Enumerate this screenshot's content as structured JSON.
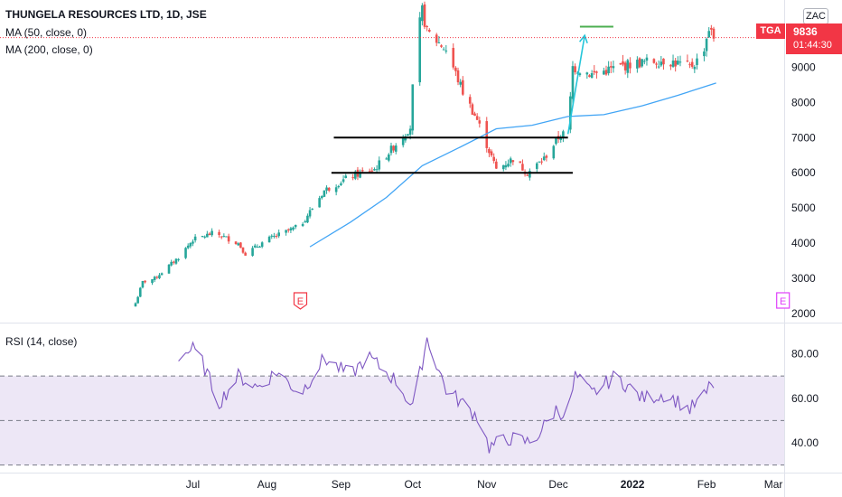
{
  "header": {
    "symbol_title": "THUNGELA RESOURCES LTD, 1D, JSE",
    "ma50_label": "MA (50, close, 0)",
    "ma200_label": "MA (200, close, 0)",
    "rsi_label": "RSI (14, close)"
  },
  "price_axis": {
    "ticks": [
      "9000",
      "8000",
      "7000",
      "6000",
      "5000",
      "4000",
      "3000",
      "2000"
    ],
    "currency_badge": "ZAC",
    "ticker_badge": "TGA",
    "last_price": "9836",
    "countdown": "01:44:30"
  },
  "rsi_axis": {
    "ticks": [
      "80.00",
      "60.00",
      "40.00"
    ]
  },
  "time_axis": {
    "labels": [
      "Jul",
      "Aug",
      "Sep",
      "Oct",
      "Nov",
      "Dec",
      "2022",
      "Feb",
      "Mar"
    ]
  },
  "markers": {
    "earnings_label": "E"
  },
  "colors": {
    "up": "#26a69a",
    "down": "#ef5350",
    "ma": "#2962ff",
    "ma_line": "#42a5f5",
    "rsi": "#7e57c2",
    "rsi_band": "#ede7f6",
    "arrow": "#26c6da",
    "target_line": "#4caf50",
    "price_badge": "#f23645",
    "earnings_marker": "#f23645",
    "earnings_marker_future": "#e040fb"
  },
  "chart_data": {
    "type": "candlestick",
    "title": "THUNGELA RESOURCES LTD, 1D, JSE",
    "price_range": [
      1800,
      10700
    ],
    "rsi_range": [
      27,
      92
    ],
    "rsi_levels": [
      70,
      50,
      30
    ],
    "last_price": 9836,
    "price_anchors": [
      [
        "2021-06-07",
        2300
      ],
      [
        "2021-06-10",
        2900
      ],
      [
        "2021-06-15",
        3000
      ],
      [
        "2021-06-25",
        3600
      ],
      [
        "2021-07-01",
        4100
      ],
      [
        "2021-07-10",
        4300
      ],
      [
        "2021-07-20",
        4000
      ],
      [
        "2021-07-23",
        3700
      ],
      [
        "2021-08-01",
        4100
      ],
      [
        "2021-08-15",
        4500
      ],
      [
        "2021-08-25",
        5500
      ],
      [
        "2021-09-05",
        5900
      ],
      [
        "2021-09-15",
        6100
      ],
      [
        "2021-09-25",
        6900
      ],
      [
        "2021-09-30",
        7300
      ],
      [
        "2021-10-02",
        9500
      ],
      [
        "2021-10-05",
        10600
      ],
      [
        "2021-10-07",
        10000
      ],
      [
        "2021-10-15",
        9500
      ],
      [
        "2021-10-22",
        8300
      ],
      [
        "2021-10-28",
        7500
      ],
      [
        "2021-11-01",
        6800
      ],
      [
        "2021-11-05",
        6100
      ],
      [
        "2021-11-12",
        6400
      ],
      [
        "2021-11-18",
        6000
      ],
      [
        "2021-11-25",
        6400
      ],
      [
        "2021-12-01",
        7000
      ],
      [
        "2021-12-05",
        7200
      ],
      [
        "2021-12-07",
        9000
      ],
      [
        "2021-12-15",
        8800
      ],
      [
        "2022-01-01",
        9100
      ],
      [
        "2022-01-15",
        9200
      ],
      [
        "2022-01-25",
        9000
      ],
      [
        "2022-01-30",
        9300
      ],
      [
        "2022-02-02",
        10100
      ],
      [
        "2022-02-04",
        9836
      ]
    ],
    "rsi_anchors": [
      [
        "2021-06-25",
        79
      ],
      [
        "2021-07-01",
        82
      ],
      [
        "2021-07-05",
        76
      ],
      [
        "2021-07-12",
        58
      ],
      [
        "2021-07-20",
        70
      ],
      [
        "2021-07-28",
        65
      ],
      [
        "2021-08-05",
        72
      ],
      [
        "2021-08-15",
        62
      ],
      [
        "2021-08-25",
        78
      ],
      [
        "2021-09-05",
        70
      ],
      [
        "2021-09-12",
        79
      ],
      [
        "2021-09-25",
        67
      ],
      [
        "2021-10-01",
        55
      ],
      [
        "2021-10-07",
        87
      ],
      [
        "2021-10-15",
        64
      ],
      [
        "2021-10-28",
        52
      ],
      [
        "2021-11-02",
        38
      ],
      [
        "2021-11-10",
        42
      ],
      [
        "2021-11-20",
        40
      ],
      [
        "2021-11-30",
        55
      ],
      [
        "2021-12-05",
        52
      ],
      [
        "2021-12-08",
        70
      ],
      [
        "2021-12-15",
        62
      ],
      [
        "2021-12-25",
        70
      ],
      [
        "2022-01-05",
        60
      ],
      [
        "2022-01-15",
        62
      ],
      [
        "2022-01-25",
        55
      ],
      [
        "2022-02-01",
        62
      ],
      [
        "2022-02-03",
        68
      ],
      [
        "2022-02-04",
        64
      ]
    ],
    "ma50": [
      [
        "2021-08-19",
        3900
      ],
      [
        "2021-09-05",
        4600
      ],
      [
        "2021-09-20",
        5300
      ],
      [
        "2021-10-05",
        6200
      ],
      [
        "2021-10-20",
        6700
      ],
      [
        "2021-11-05",
        7250
      ],
      [
        "2021-11-20",
        7350
      ],
      [
        "2021-12-05",
        7600
      ],
      [
        "2021-12-20",
        7650
      ],
      [
        "2022-01-05",
        7900
      ],
      [
        "2022-01-20",
        8200
      ],
      [
        "2022-02-05",
        8550
      ]
    ],
    "horizontal_levels": [
      {
        "from": "2021-08-29",
        "to": "2021-12-05",
        "value": 7000
      },
      {
        "from": "2021-08-28",
        "to": "2021-12-07",
        "value": 6000
      }
    ],
    "projection": {
      "from": [
        "2021-12-05",
        7100
      ],
      "to": [
        "2021-12-12",
        9900
      ],
      "target_from": "2021-12-10",
      "target_to": "2021-12-24",
      "target": 10150
    },
    "earnings_dates": [
      "2021-08-15",
      "2022-03-05"
    ]
  }
}
